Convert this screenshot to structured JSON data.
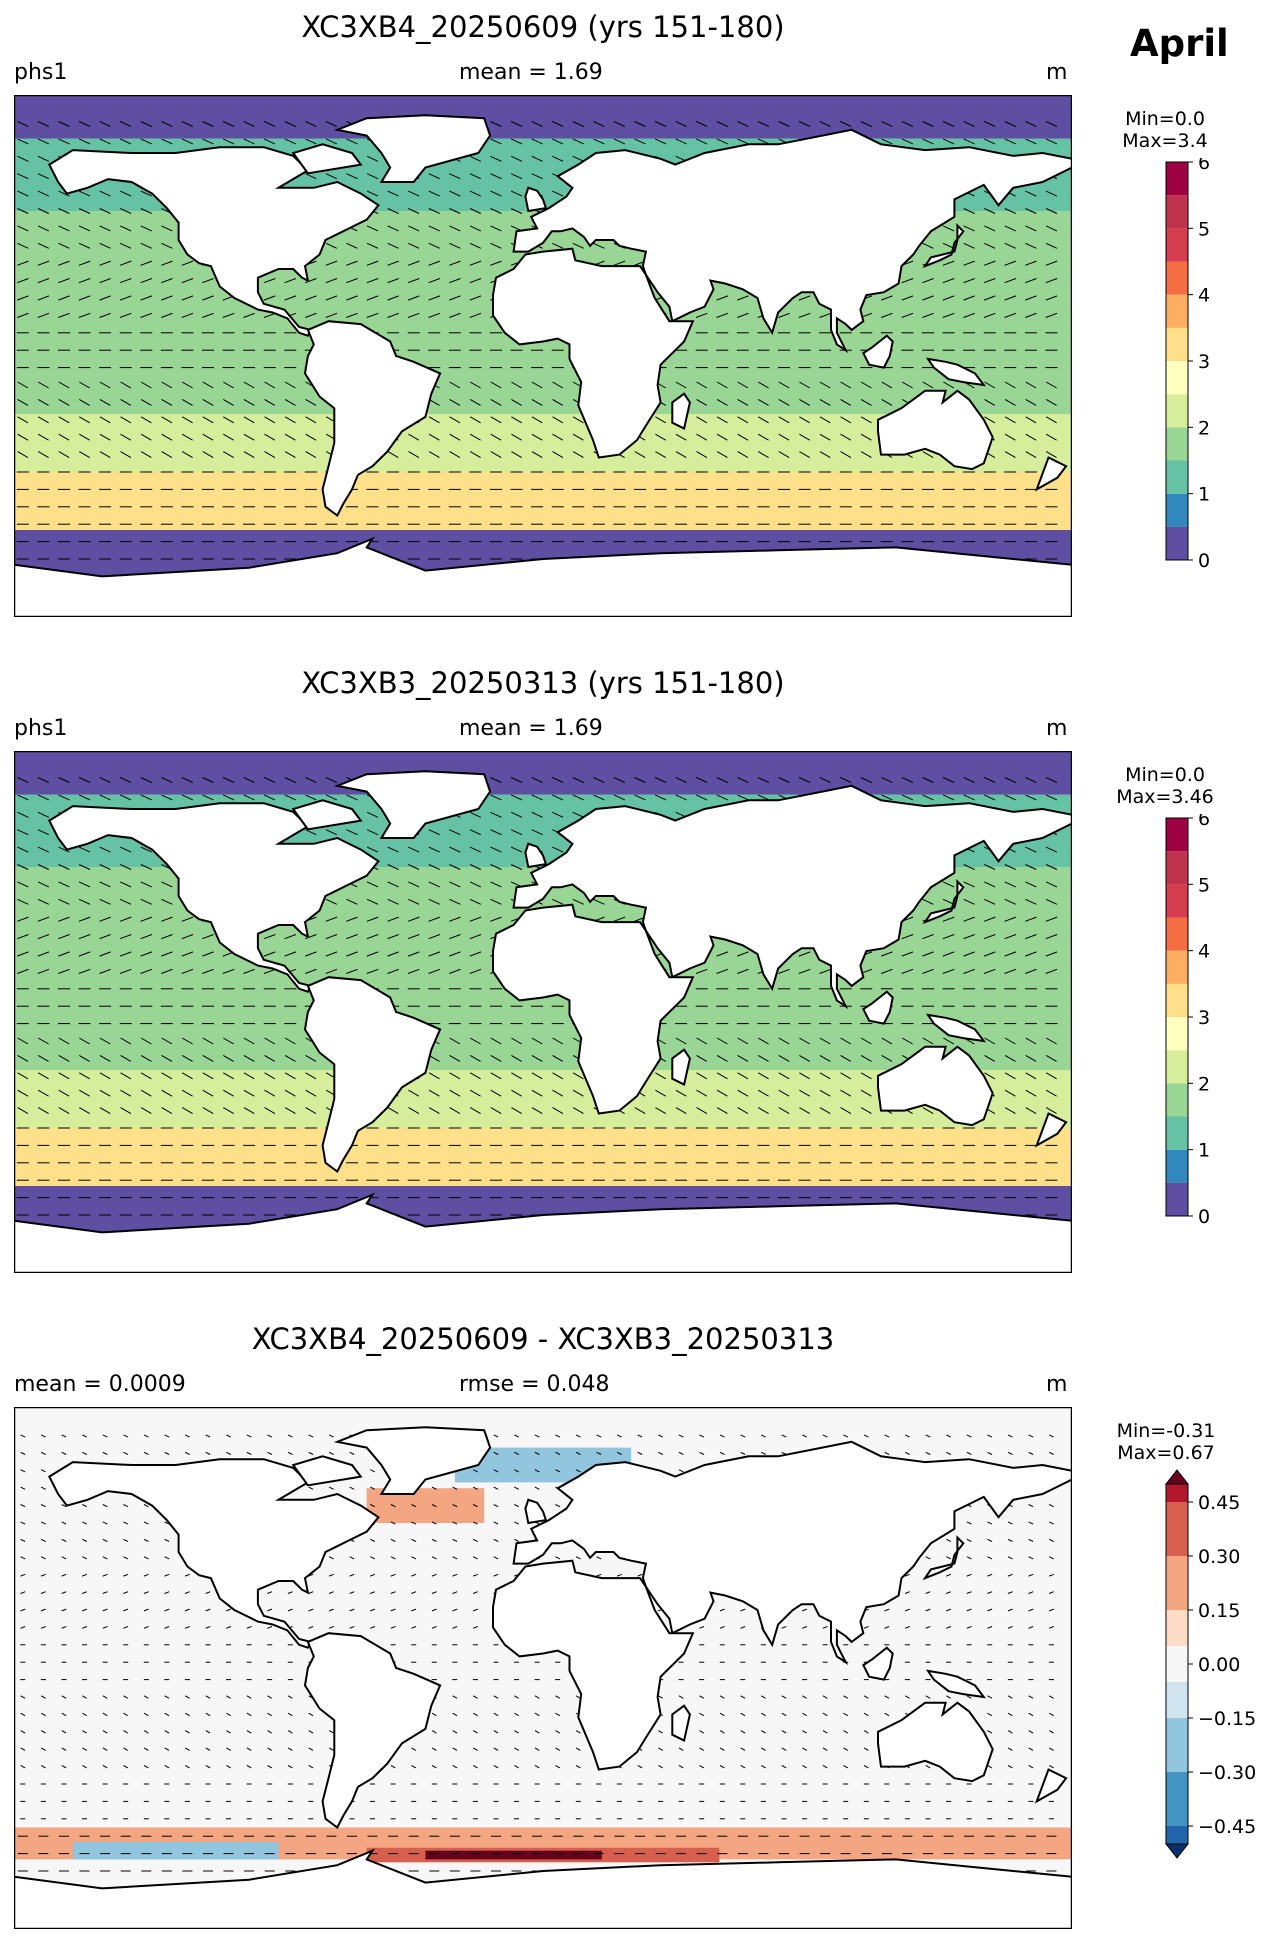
{
  "month": "April",
  "panels": [
    {
      "title": "XC3XB4_20250609 (yrs 151-180)",
      "left_label": "phs1",
      "center_label": "mean = 1.69",
      "right_label": "m",
      "cbar_min": "Min=0.0",
      "cbar_max": "Max=3.4"
    },
    {
      "title": "XC3XB3_20250313 (yrs 151-180)",
      "left_label": "phs1",
      "center_label": "mean = 1.69",
      "right_label": "m",
      "cbar_min": "Min=0.0",
      "cbar_max": "Max=3.46"
    },
    {
      "title": "XC3XB4_20250609 - XC3XB3_20250313",
      "left_label": "mean = 0.0009",
      "center_label": "rmse = 0.048",
      "right_label": "m",
      "cbar_min": "Min=-0.31",
      "cbar_max": "Max=0.67"
    }
  ],
  "chart_data": [
    {
      "type": "heatmap",
      "title": "XC3XB4_20250609 (yrs 151-180)",
      "variable": "phs1",
      "units": "m",
      "mean": 1.69,
      "min": 0.0,
      "max": 3.4,
      "colorbar": {
        "levels": [
          0,
          0.5,
          1,
          1.5,
          2,
          2.5,
          3,
          3.5,
          4,
          4.5,
          5,
          5.5,
          6
        ],
        "ticks": [
          "0",
          "1",
          "2",
          "3",
          "4",
          "5",
          "6"
        ],
        "colors": [
          "#5e4fa2",
          "#3288bd",
          "#66c2a5",
          "#99d594",
          "#d6ee9b",
          "#ffffbf",
          "#fee08b",
          "#fdae61",
          "#f46d43",
          "#d53e4f",
          "#c0354d",
          "#9e0142"
        ]
      },
      "zonal_bands": [
        {
          "lat": [
            75,
            90
          ],
          "value": 0.3
        },
        {
          "lat": [
            50,
            75
          ],
          "value": 1.3
        },
        {
          "lat": [
            20,
            50
          ],
          "value": 1.8
        },
        {
          "lat": [
            -20,
            20
          ],
          "value": 1.6
        },
        {
          "lat": [
            -40,
            -20
          ],
          "value": 2.3
        },
        {
          "lat": [
            -60,
            -40
          ],
          "value": 3.1
        },
        {
          "lat": [
            -72,
            -60
          ],
          "value": 0.2
        }
      ]
    },
    {
      "type": "heatmap",
      "title": "XC3XB3_20250313 (yrs 151-180)",
      "variable": "phs1",
      "units": "m",
      "mean": 1.69,
      "min": 0.0,
      "max": 3.46,
      "colorbar": {
        "levels": [
          0,
          0.5,
          1,
          1.5,
          2,
          2.5,
          3,
          3.5,
          4,
          4.5,
          5,
          5.5,
          6
        ],
        "ticks": [
          "0",
          "1",
          "2",
          "3",
          "4",
          "5",
          "6"
        ],
        "colors": [
          "#5e4fa2",
          "#3288bd",
          "#66c2a5",
          "#99d594",
          "#d6ee9b",
          "#ffffbf",
          "#fee08b",
          "#fdae61",
          "#f46d43",
          "#d53e4f",
          "#c0354d",
          "#9e0142"
        ]
      },
      "zonal_bands": [
        {
          "lat": [
            75,
            90
          ],
          "value": 0.3
        },
        {
          "lat": [
            50,
            75
          ],
          "value": 1.3
        },
        {
          "lat": [
            20,
            50
          ],
          "value": 1.7
        },
        {
          "lat": [
            -20,
            20
          ],
          "value": 1.5
        },
        {
          "lat": [
            -40,
            -20
          ],
          "value": 2.2
        },
        {
          "lat": [
            -60,
            -40
          ],
          "value": 3.1
        },
        {
          "lat": [
            -72,
            -60
          ],
          "value": 0.2
        }
      ]
    },
    {
      "type": "heatmap",
      "title": "XC3XB4_20250609 - XC3XB3_20250313",
      "units": "m",
      "mean": 0.0009,
      "rmse": 0.048,
      "min": -0.31,
      "max": 0.67,
      "colorbar": {
        "levels": [
          -0.5,
          -0.45,
          -0.3,
          -0.15,
          -0.05,
          0.05,
          0.15,
          0.3,
          0.45,
          0.5
        ],
        "ticks": [
          "0.45",
          "0.30",
          "0.15",
          "0.00",
          "−0.15",
          "−0.30",
          "−0.45"
        ],
        "colors": [
          "#08306b",
          "#2166ac",
          "#4393c3",
          "#92c5de",
          "#d1e5f0",
          "#f7f7f7",
          "#fddbc7",
          "#f4a582",
          "#d6604d",
          "#b2182b",
          "#67001f"
        ]
      },
      "zonal_bands": [
        {
          "lat": [
            75,
            90
          ],
          "value": 0.03
        },
        {
          "lat": [
            40,
            75
          ],
          "value": 0.0
        },
        {
          "lat": [
            -20,
            40
          ],
          "value": 0.01
        },
        {
          "lat": [
            -55,
            -20
          ],
          "value": -0.03
        },
        {
          "lat": [
            -66,
            -55
          ],
          "value": 0.2
        },
        {
          "lat": [
            -90,
            -66
          ],
          "value": 0.02
        }
      ]
    }
  ]
}
